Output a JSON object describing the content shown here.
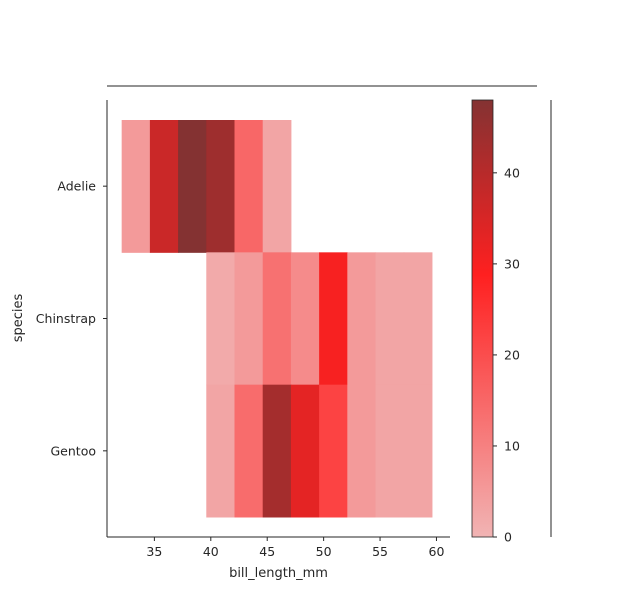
{
  "chart_data": {
    "type": "heatmap",
    "title": "",
    "xlabel": "bill_length_mm",
    "ylabel": "species",
    "xlim": [
      30.8,
      61.2
    ],
    "x_ticks": [
      35,
      40,
      45,
      50,
      55,
      60
    ],
    "categories": [
      "Adelie",
      "Chinstrap",
      "Gentoo"
    ],
    "x_bin_edges": [
      32.1,
      34.6,
      37.1,
      39.6,
      42.1,
      44.6,
      47.1,
      49.6,
      52.1,
      54.6,
      57.1,
      59.6
    ],
    "counts": [
      [
        5,
        37,
        48,
        44,
        15,
        3,
        null,
        null,
        null,
        null,
        null
      ],
      [
        null,
        null,
        null,
        2,
        5,
        13,
        8,
        30,
        5,
        3,
        3
      ],
      [
        null,
        null,
        null,
        3,
        14,
        43,
        33,
        22,
        5,
        3,
        3
      ]
    ],
    "colorbar": {
      "ticks": [
        0,
        10,
        20,
        30,
        40
      ],
      "range": [
        0,
        48
      ]
    },
    "grid": false,
    "marginal_histograms": "empty",
    "colors": {
      "low": "#f1b4b4",
      "mid": "#ff2020",
      "high": "#843232",
      "axis": "#262626"
    }
  }
}
